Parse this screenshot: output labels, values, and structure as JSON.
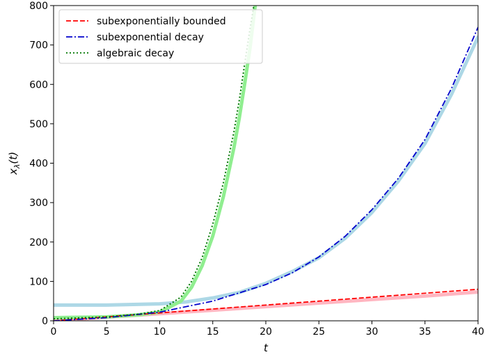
{
  "chart_data": {
    "type": "line",
    "title": "",
    "xlabel": "t",
    "ylabel": "x",
    "ylabel_subscript": "λ",
    "ylabel_suffix": "(t)",
    "xlim": [
      0,
      40
    ],
    "ylim": [
      0,
      800
    ],
    "xticks": [
      "0",
      "5",
      "10",
      "15",
      "20",
      "25",
      "30",
      "35",
      "40"
    ],
    "yticks": [
      "0",
      "100",
      "200",
      "300",
      "400",
      "500",
      "600",
      "700",
      "800"
    ],
    "grid": false,
    "legend_position": "top-left",
    "series": [
      {
        "name": "subexponentially bounded",
        "color": "#ff0000",
        "style": "dashed",
        "x": [
          0,
          5,
          10,
          15,
          20,
          25,
          30,
          35,
          40
        ],
        "y": [
          0,
          10,
          20,
          30,
          40,
          50,
          60,
          70,
          80
        ]
      },
      {
        "name": "subexponential decay",
        "color": "#0000cc",
        "style": "dashdot",
        "x": [
          0,
          5,
          10,
          15,
          20,
          22.5,
          25,
          27.5,
          30,
          32.5,
          35,
          37.5,
          40
        ],
        "y": [
          0,
          8,
          22,
          50,
          92,
          122,
          162,
          215,
          282,
          362,
          460,
          590,
          745
        ]
      },
      {
        "name": "algebraic decay",
        "color": "#007700",
        "style": "dotted",
        "x": [
          0,
          5,
          8,
          10,
          12,
          13,
          14,
          15,
          16,
          17,
          17.5,
          18,
          18.5,
          19
        ],
        "y": [
          5,
          10,
          17,
          26,
          60,
          100,
          160,
          245,
          350,
          480,
          560,
          650,
          740,
          820
        ]
      },
      {
        "name": "",
        "color": "#ffb6c1",
        "style": "thick",
        "x": [
          0,
          5,
          10,
          15,
          20,
          25,
          30,
          35,
          40
        ],
        "y": [
          0,
          9,
          18,
          27,
          36,
          45,
          54,
          63,
          73
        ]
      },
      {
        "name": "",
        "color": "#add8e6",
        "style": "thick",
        "x": [
          0,
          5,
          10,
          12.5,
          15,
          17.5,
          20,
          22.5,
          25,
          27.5,
          30,
          32.5,
          35,
          37.5,
          40
        ],
        "y": [
          40,
          40,
          43,
          48,
          58,
          72,
          95,
          125,
          160,
          210,
          275,
          355,
          450,
          575,
          720
        ]
      },
      {
        "name": "",
        "color": "#90ee90",
        "style": "thick",
        "x": [
          0,
          5,
          8,
          10,
          12,
          13,
          14,
          15,
          16,
          17,
          17.5,
          18,
          18.5,
          19
        ],
        "y": [
          8,
          10,
          15,
          22,
          50,
          85,
          140,
          215,
          315,
          440,
          515,
          600,
          690,
          800
        ]
      }
    ]
  }
}
